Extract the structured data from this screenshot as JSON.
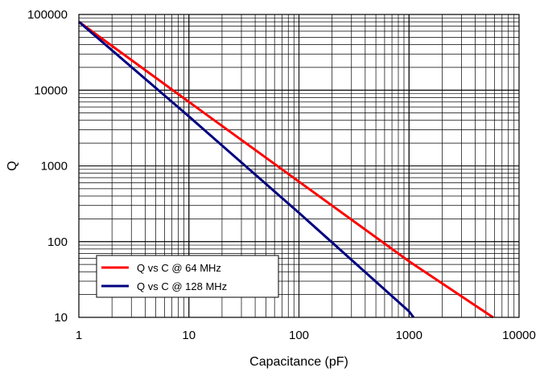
{
  "chart_data": {
    "type": "line",
    "title": "",
    "xlabel": "Capacitance (pF)",
    "ylabel": "Q",
    "x_scale": "log",
    "y_scale": "log",
    "xlim": [
      1,
      10000
    ],
    "ylim": [
      10,
      100000
    ],
    "grid": true,
    "x_ticks": [
      "1",
      "10",
      "100",
      "1000",
      "10000"
    ],
    "y_ticks": [
      "100000",
      "10000",
      "1000",
      "100",
      "10"
    ],
    "legend_position": "bottom-left",
    "series": [
      {
        "name": "Q vs C @ 64 MHz",
        "color": "#ff0000",
        "x": [
          1,
          10,
          100,
          1000,
          5800
        ],
        "y": [
          80000,
          7000,
          620,
          55,
          10
        ]
      },
      {
        "name": "Q vs C @ 128 MHz",
        "color": "#000080",
        "x": [
          1,
          10,
          100,
          1000,
          1100
        ],
        "y": [
          80000,
          4500,
          240,
          12,
          10
        ]
      }
    ]
  }
}
